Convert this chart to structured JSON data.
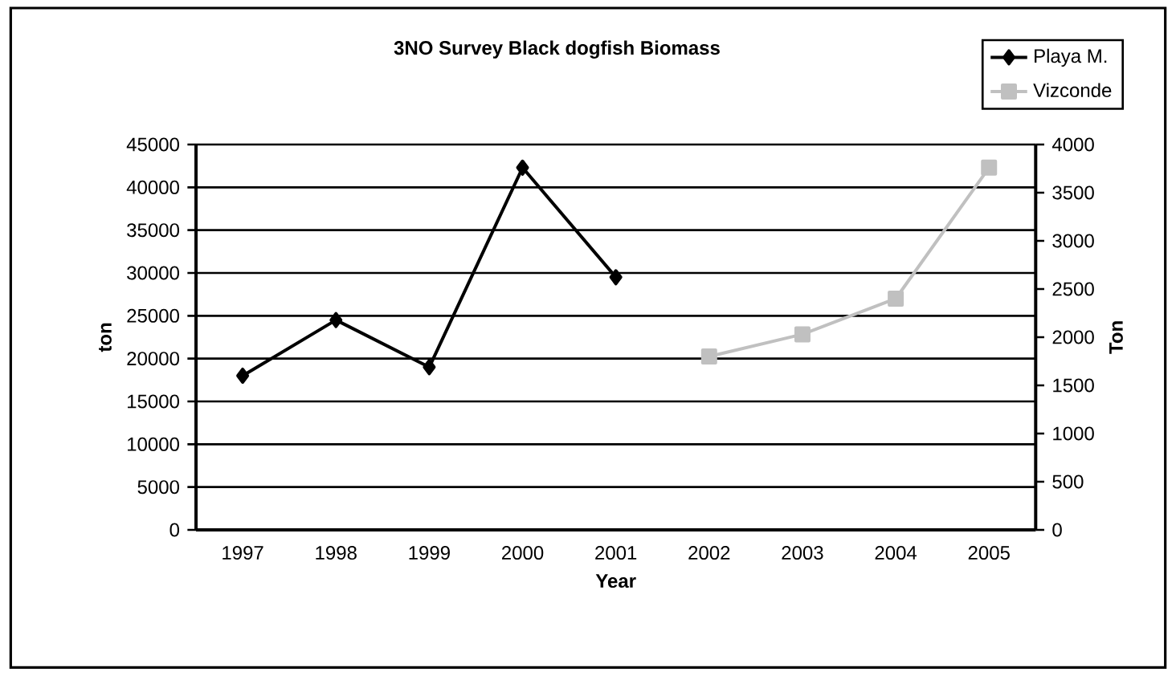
{
  "chart_data": {
    "type": "line",
    "title": "3NO Survey Black dogfish Biomass",
    "xlabel": "Year",
    "ylabel": "ton",
    "y2label": "Ton",
    "categories": [
      "1997",
      "1998",
      "1999",
      "2000",
      "2001",
      "2002",
      "2003",
      "2004",
      "2005"
    ],
    "series": [
      {
        "name": "Playa M.",
        "color": "#000000",
        "marker": "diamond",
        "values": [
          18000,
          24500,
          19000,
          42300,
          29500,
          null,
          null,
          null,
          null
        ]
      },
      {
        "name": "Vizconde",
        "color": "#c0c0c0",
        "marker": "square",
        "axis": "y2",
        "values": [
          null,
          null,
          null,
          null,
          null,
          1800,
          2030,
          2400,
          3760
        ]
      }
    ],
    "ylim": [
      0,
      45000
    ],
    "yticks": [
      0,
      5000,
      10000,
      15000,
      20000,
      25000,
      30000,
      35000,
      40000,
      45000
    ],
    "y2lim": [
      0,
      4000
    ],
    "y2ticks": [
      0,
      500,
      1000,
      1500,
      2000,
      2500,
      3000,
      3500,
      4000
    ],
    "grid": "y",
    "legend": "top right"
  }
}
